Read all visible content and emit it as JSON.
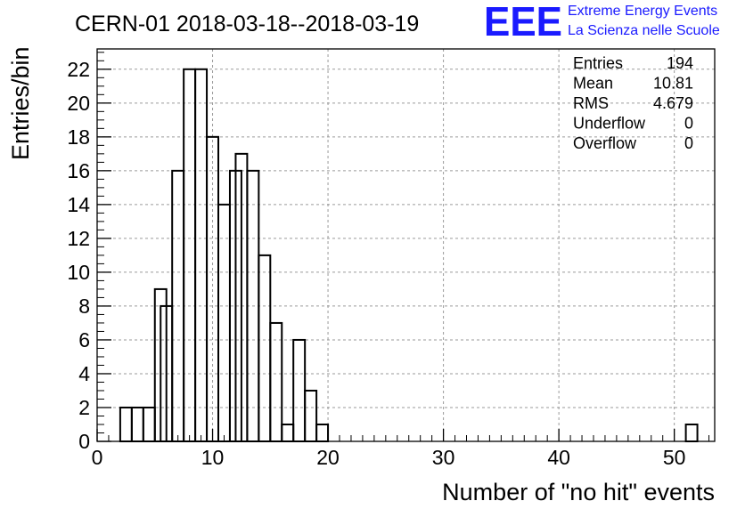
{
  "chart_data": {
    "type": "bar",
    "title": "CERN-01 2018-03-18--2018-03-19",
    "xlabel": "Number of \"no hit\" events",
    "ylabel": "Entries/bin",
    "xlim": [
      0,
      53.5
    ],
    "ylim": [
      0,
      23.2
    ],
    "bin_width": 1,
    "x_ticks": [
      0,
      10,
      20,
      30,
      40,
      50
    ],
    "y_ticks": [
      0,
      2,
      4,
      6,
      8,
      10,
      12,
      14,
      16,
      18,
      20,
      22
    ],
    "grid": true,
    "bins": [
      {
        "x": 1.5,
        "value": 0
      },
      {
        "x": 2,
        "value": 2
      },
      {
        "x": 3,
        "value": 2
      },
      {
        "x": 4,
        "value": 2
      },
      {
        "x": 5,
        "value": 9
      },
      {
        "x": 5.5,
        "value": 8
      },
      {
        "x": 6.5,
        "value": 16
      },
      {
        "x": 7.5,
        "value": 22
      },
      {
        "x": 8.5,
        "value": 22
      },
      {
        "x": 9.5,
        "value": 18
      },
      {
        "x": 10.5,
        "value": 14
      },
      {
        "x": 11.5,
        "value": 16
      },
      {
        "x": 12,
        "value": 17
      },
      {
        "x": 13,
        "value": 16
      },
      {
        "x": 14,
        "value": 11
      },
      {
        "x": 15,
        "value": 7
      },
      {
        "x": 16,
        "value": 1
      },
      {
        "x": 17,
        "value": 6
      },
      {
        "x": 18,
        "value": 3
      },
      {
        "x": 19,
        "value": 1
      },
      {
        "x": 51,
        "value": 1
      }
    ],
    "stats": [
      {
        "label": "Entries",
        "value": "194"
      },
      {
        "label": "Mean",
        "value": "10.81"
      },
      {
        "label": "RMS",
        "value": "4.679"
      },
      {
        "label": "Underflow",
        "value": "0"
      },
      {
        "label": "Overflow",
        "value": "0"
      }
    ]
  },
  "logo": {
    "mark": "EEE",
    "line1": "Extreme Energy Events",
    "line2": "La Scienza nelle Scuole",
    "color": "#1a1aff"
  }
}
